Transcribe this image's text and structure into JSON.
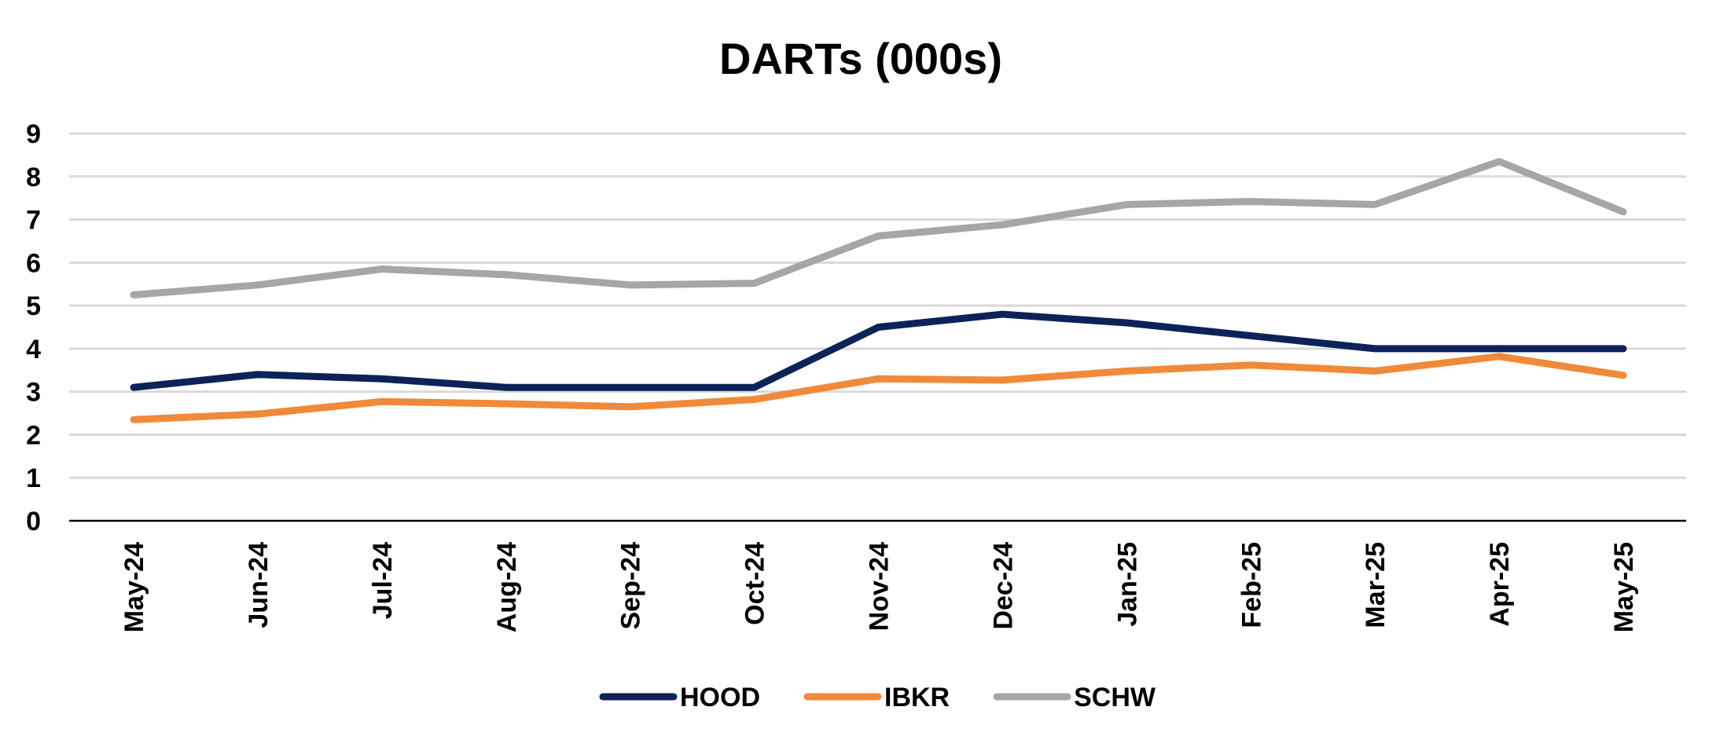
{
  "chart_data": {
    "type": "line",
    "title": "DARTs (000s)",
    "xlabel": "",
    "ylabel": "",
    "ylim": [
      0,
      9
    ],
    "yticks": [
      0,
      1,
      2,
      3,
      4,
      5,
      6,
      7,
      8,
      9
    ],
    "grid": true,
    "legend_position": "bottom",
    "categories": [
      "May-24",
      "Jun-24",
      "Jul-24",
      "Aug-24",
      "Sep-24",
      "Oct-24",
      "Nov-24",
      "Dec-24",
      "Jan-25",
      "Feb-25",
      "Mar-25",
      "Apr-25",
      "May-25"
    ],
    "series": [
      {
        "name": "HOOD",
        "color": "#0d2259",
        "values": [
          3.1,
          3.4,
          3.3,
          3.1,
          3.1,
          3.1,
          4.5,
          4.8,
          4.6,
          4.3,
          4.0,
          4.0,
          4.0
        ]
      },
      {
        "name": "IBKR",
        "color": "#f08a3a",
        "values": [
          2.35,
          2.48,
          2.77,
          2.72,
          2.65,
          2.82,
          3.3,
          3.27,
          3.48,
          3.62,
          3.48,
          3.82,
          3.38
        ]
      },
      {
        "name": "SCHW",
        "color": "#a6a6a6",
        "values": [
          5.25,
          5.48,
          5.85,
          5.72,
          5.48,
          5.52,
          6.62,
          6.88,
          7.35,
          7.42,
          7.35,
          8.35,
          7.18
        ]
      }
    ]
  }
}
